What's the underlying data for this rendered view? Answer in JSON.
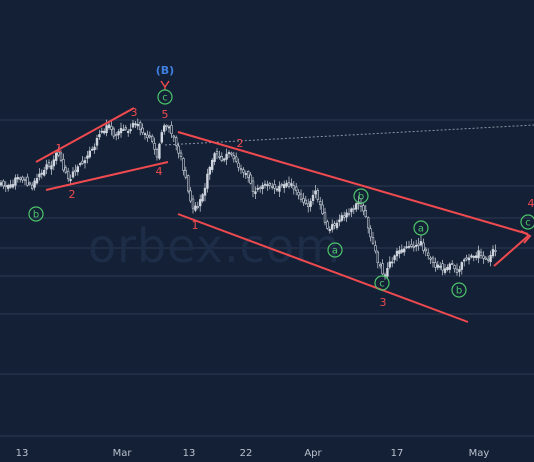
{
  "colors": {
    "background": "#142035",
    "grid": "#2b3a52",
    "candle": "#cfd6df",
    "trendline": "#ef4a4f",
    "wave_red": "#ef4a4f",
    "wave_green": "#4cc46a",
    "wave_blue": "#3f7fe0",
    "axis_text": "#b8c0cc"
  },
  "watermark": "orbex.com",
  "chart_data": {
    "type": "candlestick",
    "x_tick_labels": [
      "13",
      "Mar",
      "13",
      "22",
      "Apr",
      "17",
      "May"
    ],
    "wave_labels": [
      {
        "text": "(B)",
        "style": "blue"
      },
      {
        "text": "5",
        "style": "red"
      },
      {
        "text": "3",
        "style": "red"
      },
      {
        "text": "1",
        "style": "red"
      },
      {
        "text": "2",
        "style": "red"
      },
      {
        "text": "4",
        "style": "red"
      },
      {
        "text": "2",
        "style": "red"
      },
      {
        "text": "1",
        "style": "red"
      },
      {
        "text": "3",
        "style": "red"
      },
      {
        "text": "4",
        "style": "red"
      },
      {
        "text": "b",
        "style": "green"
      },
      {
        "text": "c",
        "style": "green"
      },
      {
        "text": "b",
        "style": "green"
      },
      {
        "text": "a",
        "style": "green"
      },
      {
        "text": "a",
        "style": "green"
      },
      {
        "text": "c",
        "style": "green"
      },
      {
        "text": "b",
        "style": "green"
      },
      {
        "text": "c",
        "style": "green"
      }
    ],
    "grid": true
  }
}
